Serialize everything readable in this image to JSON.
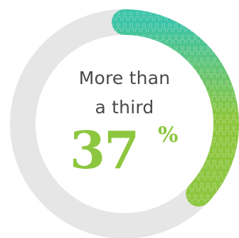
{
  "chart_data": {
    "type": "pie",
    "title": "",
    "categories": [
      "More than a third"
    ],
    "values": [
      37
    ],
    "max": 100,
    "colors": {
      "track": "#e6e6e6",
      "arc_start": "#3cc4a8",
      "arc_end": "#8dc63f",
      "value_text": "#8dc63f",
      "label_text": "#4a4a4a"
    }
  },
  "center": {
    "line1": "More than",
    "line2": "a third",
    "value": "37",
    "unit": "%"
  }
}
